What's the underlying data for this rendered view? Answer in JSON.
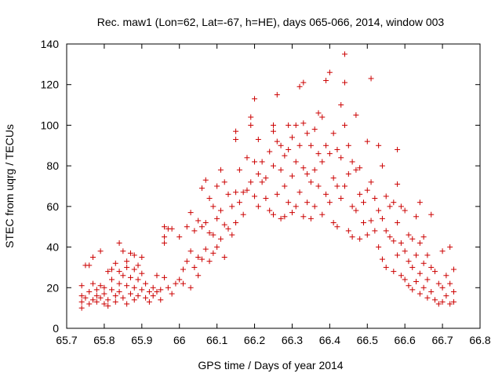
{
  "chart_data": {
    "type": "scatter",
    "title": "Rec. maw1 (Lon=62, Lat=-67, h=HE), days 065-066, 2014, window 003",
    "xlabel": "GPS time / Days of year 2014",
    "ylabel": "STEC from uqrg / TECUs",
    "xlim": [
      65.7,
      66.8
    ],
    "ylim": [
      0,
      140
    ],
    "xticks": [
      "65.7",
      "65.8",
      "65.9",
      "66",
      "66.1",
      "66.2",
      "66.3",
      "66.4",
      "66.5",
      "66.6",
      "66.7",
      "66.8"
    ],
    "yticks": [
      "0",
      "20",
      "40",
      "60",
      "80",
      "100",
      "120",
      "140"
    ],
    "grid": false,
    "legend": "none",
    "marker": "+",
    "color": "#cc0000",
    "points": [
      [
        65.74,
        10
      ],
      [
        65.74,
        13
      ],
      [
        65.74,
        16
      ],
      [
        65.74,
        21
      ],
      [
        65.75,
        31
      ],
      [
        65.75,
        15
      ],
      [
        65.76,
        31
      ],
      [
        65.76,
        18
      ],
      [
        65.76,
        12
      ],
      [
        65.77,
        14
      ],
      [
        65.77,
        22
      ],
      [
        65.77,
        35
      ],
      [
        65.78,
        16
      ],
      [
        65.78,
        19
      ],
      [
        65.78,
        13
      ],
      [
        65.79,
        38
      ],
      [
        65.79,
        21
      ],
      [
        65.79,
        15
      ],
      [
        65.8,
        12
      ],
      [
        65.8,
        20
      ],
      [
        65.8,
        17
      ],
      [
        65.81,
        28
      ],
      [
        65.81,
        14
      ],
      [
        65.81,
        11
      ],
      [
        65.82,
        29
      ],
      [
        65.82,
        19
      ],
      [
        65.82,
        24
      ],
      [
        65.83,
        32
      ],
      [
        65.83,
        16
      ],
      [
        65.83,
        13
      ],
      [
        65.84,
        42
      ],
      [
        65.84,
        28
      ],
      [
        65.84,
        18
      ],
      [
        65.84,
        22
      ],
      [
        65.85,
        38
      ],
      [
        65.85,
        26
      ],
      [
        65.85,
        15
      ],
      [
        65.86,
        33
      ],
      [
        65.86,
        21
      ],
      [
        65.86,
        12
      ],
      [
        65.86,
        30
      ],
      [
        65.87,
        37
      ],
      [
        65.87,
        25
      ],
      [
        65.87,
        17
      ],
      [
        65.88,
        36
      ],
      [
        65.88,
        29
      ],
      [
        65.88,
        20
      ],
      [
        65.88,
        14
      ],
      [
        65.89,
        31
      ],
      [
        65.89,
        24
      ],
      [
        65.89,
        16
      ],
      [
        65.9,
        35
      ],
      [
        65.9,
        27
      ],
      [
        65.9,
        19
      ],
      [
        65.91,
        22
      ],
      [
        65.91,
        15
      ],
      [
        65.92,
        18
      ],
      [
        65.92,
        13
      ],
      [
        65.93,
        16
      ],
      [
        65.93,
        20
      ],
      [
        65.94,
        18
      ],
      [
        65.94,
        26
      ],
      [
        65.95,
        14
      ],
      [
        65.95,
        19
      ],
      [
        65.96,
        45
      ],
      [
        65.96,
        50
      ],
      [
        65.96,
        42
      ],
      [
        65.96,
        25
      ],
      [
        65.97,
        49
      ],
      [
        65.97,
        20
      ],
      [
        65.98,
        49
      ],
      [
        65.98,
        17
      ],
      [
        65.99,
        22
      ],
      [
        66.0,
        45
      ],
      [
        66.0,
        24
      ],
      [
        66.01,
        22
      ],
      [
        66.01,
        29
      ],
      [
        66.02,
        50
      ],
      [
        66.02,
        33
      ],
      [
        66.03,
        57
      ],
      [
        66.03,
        38
      ],
      [
        66.03,
        20
      ],
      [
        66.04,
        48
      ],
      [
        66.04,
        30
      ],
      [
        66.05,
        53
      ],
      [
        66.05,
        35
      ],
      [
        66.05,
        26
      ],
      [
        66.06,
        69
      ],
      [
        66.06,
        50
      ],
      [
        66.06,
        34
      ],
      [
        66.07,
        73
      ],
      [
        66.07,
        52
      ],
      [
        66.07,
        39
      ],
      [
        66.08,
        64
      ],
      [
        66.08,
        47
      ],
      [
        66.08,
        33
      ],
      [
        66.09,
        60
      ],
      [
        66.09,
        46
      ],
      [
        66.09,
        37
      ],
      [
        66.1,
        70
      ],
      [
        66.1,
        54
      ],
      [
        66.1,
        40
      ],
      [
        66.11,
        78
      ],
      [
        66.11,
        58
      ],
      [
        66.11,
        44
      ],
      [
        66.12,
        72
      ],
      [
        66.12,
        51
      ],
      [
        66.12,
        35
      ],
      [
        66.13,
        66
      ],
      [
        66.13,
        49
      ],
      [
        66.14,
        60
      ],
      [
        66.14,
        46
      ],
      [
        66.15,
        97
      ],
      [
        66.15,
        93
      ],
      [
        66.15,
        67
      ],
      [
        66.15,
        52
      ],
      [
        66.16,
        78
      ],
      [
        66.16,
        62
      ],
      [
        66.17,
        67
      ],
      [
        66.17,
        56
      ],
      [
        66.18,
        84
      ],
      [
        66.18,
        68
      ],
      [
        66.19,
        100
      ],
      [
        66.19,
        104
      ],
      [
        66.19,
        72
      ],
      [
        66.2,
        113
      ],
      [
        66.2,
        82
      ],
      [
        66.2,
        65
      ],
      [
        66.21,
        93
      ],
      [
        66.21,
        76
      ],
      [
        66.21,
        60
      ],
      [
        66.22,
        82
      ],
      [
        66.22,
        72
      ],
      [
        66.23,
        74
      ],
      [
        66.23,
        64
      ],
      [
        66.24,
        87
      ],
      [
        66.24,
        58
      ],
      [
        66.25,
        100
      ],
      [
        66.25,
        97
      ],
      [
        66.25,
        80
      ],
      [
        66.25,
        56
      ],
      [
        66.26,
        115
      ],
      [
        66.26,
        92
      ],
      [
        66.26,
        66
      ],
      [
        66.27,
        90
      ],
      [
        66.27,
        78
      ],
      [
        66.27,
        54
      ],
      [
        66.28,
        85
      ],
      [
        66.28,
        70
      ],
      [
        66.28,
        55
      ],
      [
        66.29,
        100
      ],
      [
        66.29,
        88
      ],
      [
        66.29,
        62
      ],
      [
        66.3,
        94
      ],
      [
        66.3,
        75
      ],
      [
        66.3,
        57
      ],
      [
        66.31,
        100
      ],
      [
        66.31,
        82
      ],
      [
        66.31,
        60
      ],
      [
        66.32,
        119
      ],
      [
        66.32,
        90
      ],
      [
        66.32,
        67
      ],
      [
        66.33,
        121
      ],
      [
        66.33,
        101
      ],
      [
        66.33,
        79
      ],
      [
        66.33,
        55
      ],
      [
        66.34,
        96
      ],
      [
        66.34,
        76
      ],
      [
        66.34,
        62
      ],
      [
        66.35,
        90
      ],
      [
        66.35,
        72
      ],
      [
        66.35,
        54
      ],
      [
        66.36,
        98
      ],
      [
        66.36,
        78
      ],
      [
        66.36,
        60
      ],
      [
        66.37,
        106
      ],
      [
        66.37,
        86
      ],
      [
        66.37,
        70
      ],
      [
        66.38,
        104
      ],
      [
        66.38,
        82
      ],
      [
        66.38,
        56
      ],
      [
        66.39,
        122
      ],
      [
        66.39,
        90
      ],
      [
        66.39,
        66
      ],
      [
        66.4,
        126
      ],
      [
        66.4,
        86
      ],
      [
        66.4,
        62
      ],
      [
        66.41,
        96
      ],
      [
        66.41,
        74
      ],
      [
        66.41,
        52
      ],
      [
        66.42,
        88
      ],
      [
        66.42,
        70
      ],
      [
        66.42,
        50
      ],
      [
        66.43,
        110
      ],
      [
        66.43,
        84
      ],
      [
        66.43,
        64
      ],
      [
        66.44,
        135
      ],
      [
        66.44,
        121
      ],
      [
        66.44,
        100
      ],
      [
        66.44,
        70
      ],
      [
        66.45,
        90
      ],
      [
        66.45,
        76
      ],
      [
        66.45,
        48
      ],
      [
        66.46,
        82
      ],
      [
        66.46,
        60
      ],
      [
        66.46,
        45
      ],
      [
        66.47,
        105
      ],
      [
        66.47,
        78
      ],
      [
        66.47,
        58
      ],
      [
        66.48,
        79
      ],
      [
        66.48,
        66
      ],
      [
        66.48,
        44
      ],
      [
        66.49,
        62
      ],
      [
        66.49,
        52
      ],
      [
        66.5,
        92
      ],
      [
        66.5,
        68
      ],
      [
        66.5,
        46
      ],
      [
        66.51,
        123
      ],
      [
        66.51,
        72
      ],
      [
        66.51,
        53
      ],
      [
        66.52,
        64
      ],
      [
        66.52,
        48
      ],
      [
        66.53,
        90
      ],
      [
        66.53,
        58
      ],
      [
        66.53,
        40
      ],
      [
        66.54,
        80
      ],
      [
        66.54,
        54
      ],
      [
        66.54,
        34
      ],
      [
        66.55,
        65
      ],
      [
        66.55,
        48
      ],
      [
        66.55,
        30
      ],
      [
        66.56,
        60
      ],
      [
        66.56,
        45
      ],
      [
        66.57,
        62
      ],
      [
        66.57,
        43
      ],
      [
        66.57,
        28
      ],
      [
        66.58,
        88
      ],
      [
        66.58,
        71
      ],
      [
        66.58,
        52
      ],
      [
        66.58,
        36
      ],
      [
        66.59,
        60
      ],
      [
        66.59,
        42
      ],
      [
        66.59,
        26
      ],
      [
        66.6,
        58
      ],
      [
        66.6,
        38
      ],
      [
        66.6,
        24
      ],
      [
        66.61,
        46
      ],
      [
        66.61,
        33
      ],
      [
        66.61,
        21
      ],
      [
        66.62,
        44
      ],
      [
        66.62,
        30
      ],
      [
        66.62,
        19
      ],
      [
        66.63,
        55
      ],
      [
        66.63,
        36
      ],
      [
        66.63,
        23
      ],
      [
        66.64,
        62
      ],
      [
        66.64,
        42
      ],
      [
        66.64,
        27
      ],
      [
        66.64,
        17
      ],
      [
        66.65,
        45
      ],
      [
        66.65,
        32
      ],
      [
        66.65,
        20
      ],
      [
        66.66,
        36
      ],
      [
        66.66,
        24
      ],
      [
        66.66,
        15
      ],
      [
        66.67,
        56
      ],
      [
        66.67,
        30
      ],
      [
        66.67,
        18
      ],
      [
        66.68,
        28
      ],
      [
        66.68,
        14
      ],
      [
        66.69,
        22
      ],
      [
        66.69,
        12
      ],
      [
        66.7,
        38
      ],
      [
        66.7,
        20
      ],
      [
        66.7,
        13
      ],
      [
        66.71,
        26
      ],
      [
        66.71,
        16
      ],
      [
        66.72,
        40
      ],
      [
        66.72,
        22
      ],
      [
        66.72,
        12
      ],
      [
        66.73,
        29
      ],
      [
        66.73,
        18
      ],
      [
        66.73,
        13
      ]
    ]
  }
}
